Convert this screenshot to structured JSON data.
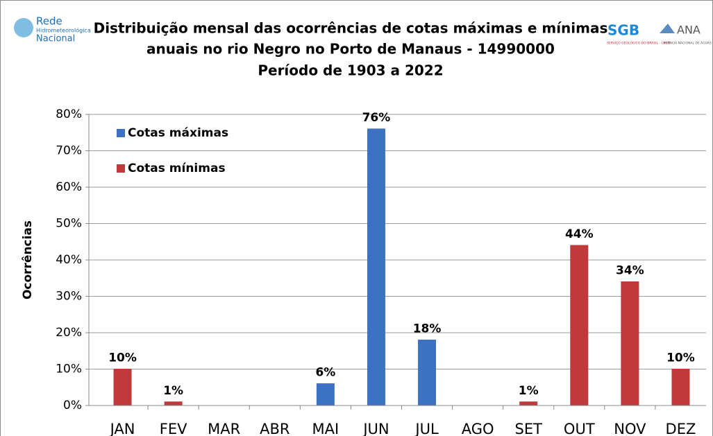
{
  "logos": {
    "left": [
      "Rede",
      "Hidrometeorológica",
      "Nacional"
    ],
    "sgb": "SGB",
    "sgb_sub": "SERVIÇO GEOLÓGICO DO BRASIL - CPRM",
    "ana": "ANA",
    "ana_sub": "AGÊNCIA NACIONAL DE ÁGUAS"
  },
  "chart_data": {
    "type": "bar",
    "title": [
      "Distribuição mensal das ocorrências de cotas máximas e mínimas",
      "anuais no rio Negro no Porto de Manaus - 14990000",
      "Período de 1903 a 2022"
    ],
    "ylabel": "Ocorrências",
    "categories": [
      "JAN",
      "FEV",
      "MAR",
      "ABR",
      "MAI",
      "JUN",
      "JUL",
      "AGO",
      "SET",
      "OUT",
      "NOV",
      "DEZ"
    ],
    "series": [
      {
        "name": "Cotas máximas",
        "color": "#3d72c2",
        "values": [
          0,
          0,
          0,
          0,
          6,
          76,
          18,
          0,
          0,
          0,
          0,
          0
        ],
        "value_labels": [
          null,
          null,
          null,
          null,
          "6%",
          "76%",
          "18%",
          null,
          null,
          null,
          null,
          null
        ]
      },
      {
        "name": "Cotas mínimas",
        "color": "#c0393b",
        "values": [
          10,
          1,
          0,
          0,
          0,
          0,
          0,
          0,
          1,
          44,
          34,
          10
        ],
        "value_labels": [
          "10%",
          "1%",
          null,
          null,
          null,
          null,
          null,
          null,
          "1%",
          "44%",
          "34%",
          "10%"
        ]
      }
    ],
    "ylim": [
      0,
      80
    ],
    "yticks": [
      {
        "value": 0,
        "label": "0%"
      },
      {
        "value": 10,
        "label": "10%"
      },
      {
        "value": 20,
        "label": "20%"
      },
      {
        "value": 30,
        "label": "30%"
      },
      {
        "value": 40,
        "label": "40%"
      },
      {
        "value": 50,
        "label": "50%"
      },
      {
        "value": 60,
        "label": "60%"
      },
      {
        "value": 70,
        "label": "70%"
      },
      {
        "value": 80,
        "label": "80%"
      }
    ],
    "grid": true,
    "legend": "upper left"
  }
}
